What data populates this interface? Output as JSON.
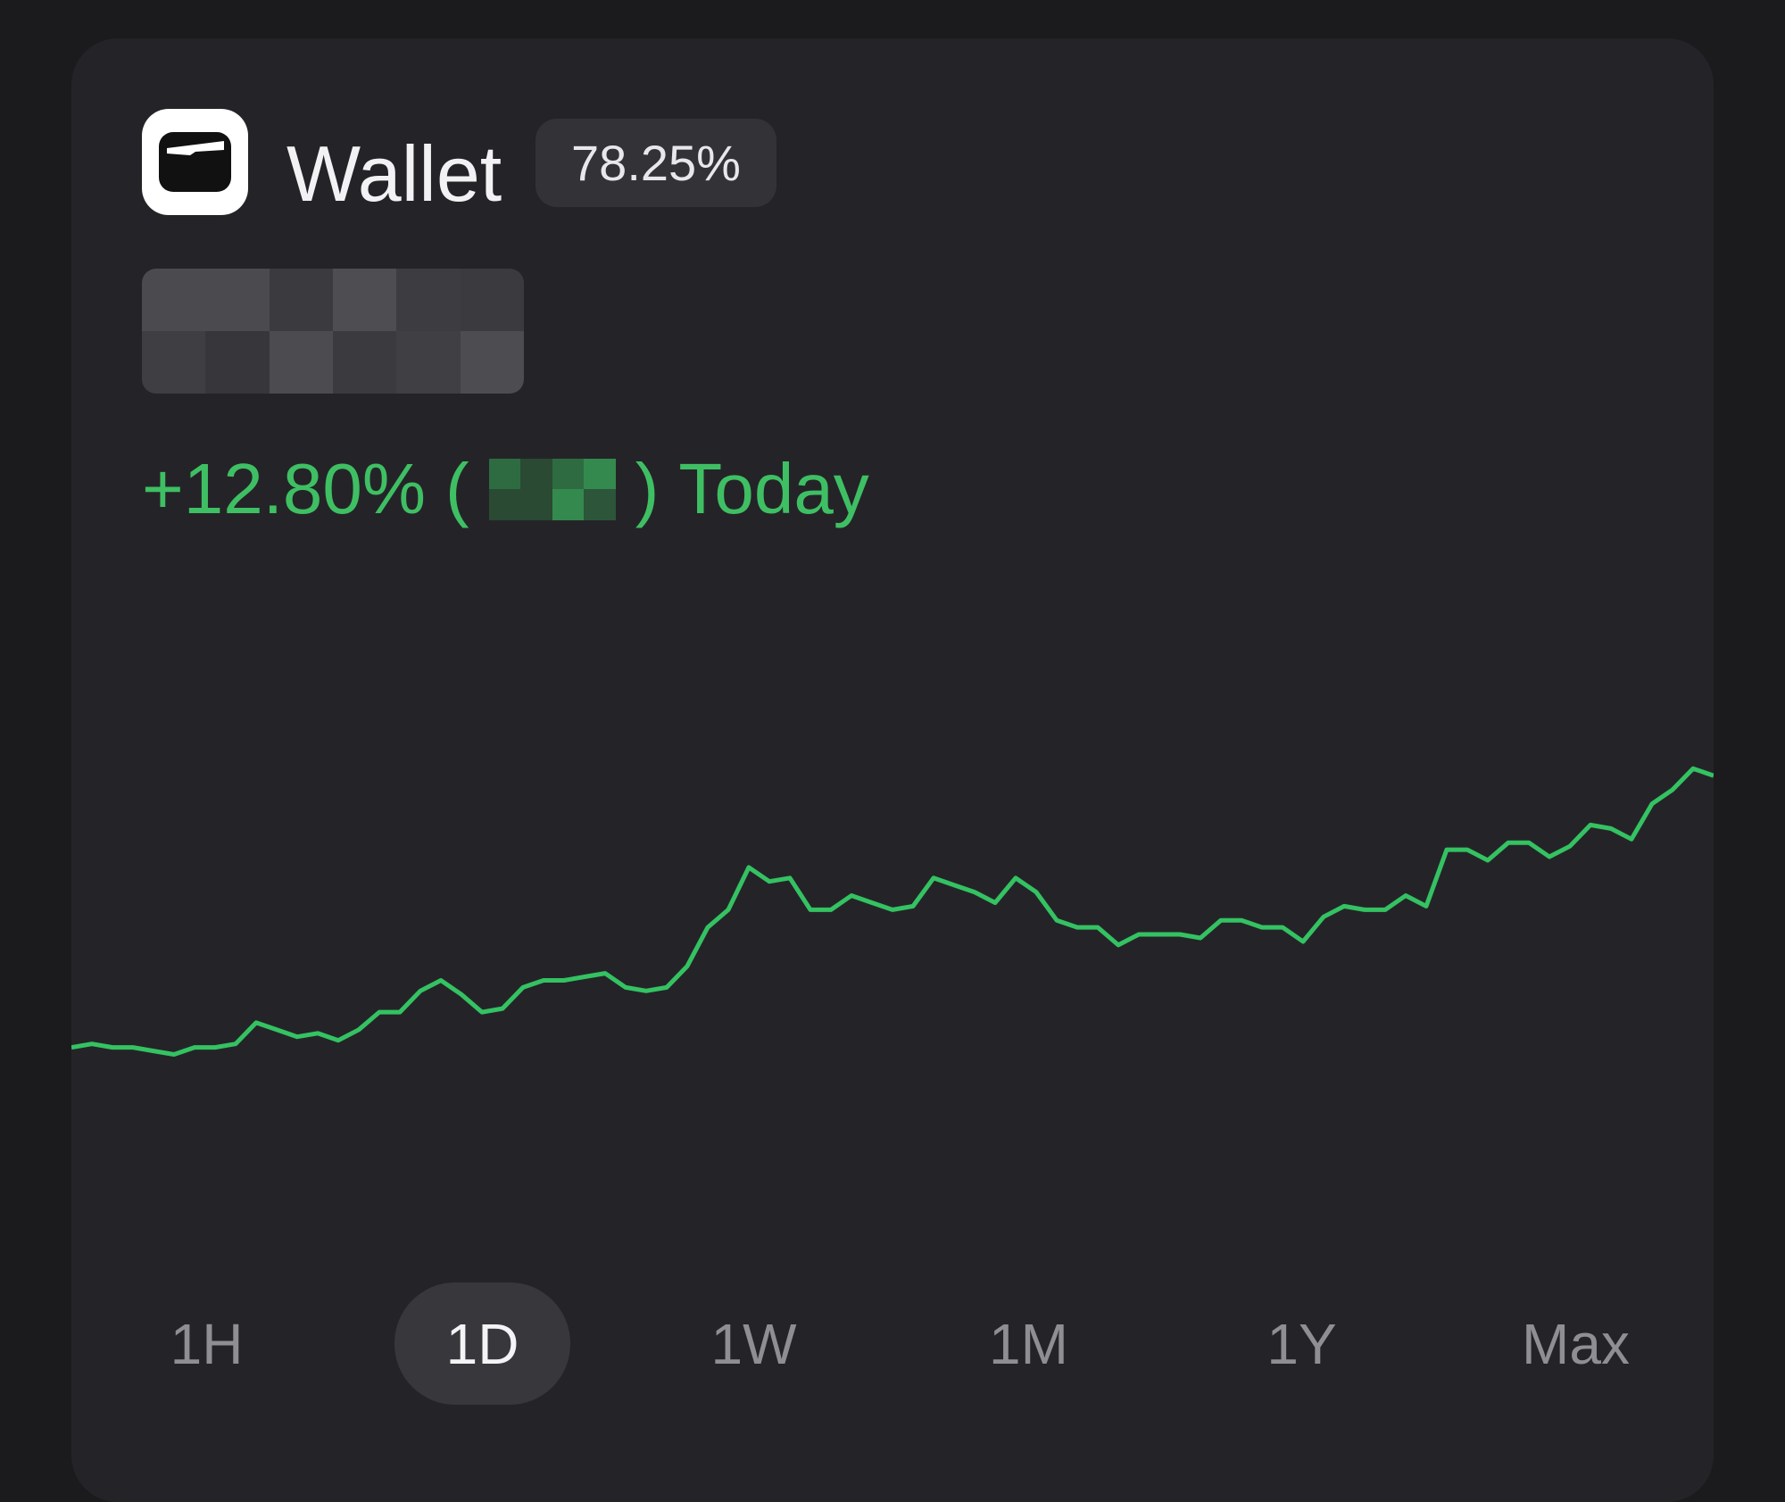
{
  "header": {
    "title": "Wallet",
    "badge": "78.25%"
  },
  "change": {
    "percent": "+12.80%",
    "open": "(",
    "close": ")",
    "period": "Today"
  },
  "chart_data": {
    "type": "line",
    "color": "#34c262",
    "ylim": [
      0,
      100
    ],
    "values": [
      29,
      29.5,
      29,
      29,
      28.5,
      28,
      29,
      29,
      29.5,
      32.5,
      31.5,
      30.5,
      31,
      30,
      31.5,
      34,
      34,
      37,
      38.5,
      36.5,
      34,
      34.5,
      37.5,
      38.5,
      38.5,
      39,
      39.5,
      37.5,
      37,
      37.5,
      40.5,
      46,
      48.5,
      54.5,
      52.5,
      53,
      48.5,
      48.5,
      50.5,
      49.5,
      48.5,
      49,
      53,
      52,
      51,
      49.5,
      53,
      51,
      47,
      46,
      46,
      43.5,
      45,
      45,
      45,
      44.5,
      47,
      47,
      46,
      46,
      44,
      47.5,
      49,
      48.5,
      48.5,
      50.5,
      49,
      57,
      57,
      55.5,
      58,
      58,
      56,
      57.5,
      60.5,
      60,
      58.5,
      63.5,
      65.5,
      68.5,
      67.5
    ]
  },
  "tabs": {
    "items": [
      "1H",
      "1D",
      "1W",
      "1M",
      "1Y",
      "Max"
    ],
    "selected": 1
  }
}
